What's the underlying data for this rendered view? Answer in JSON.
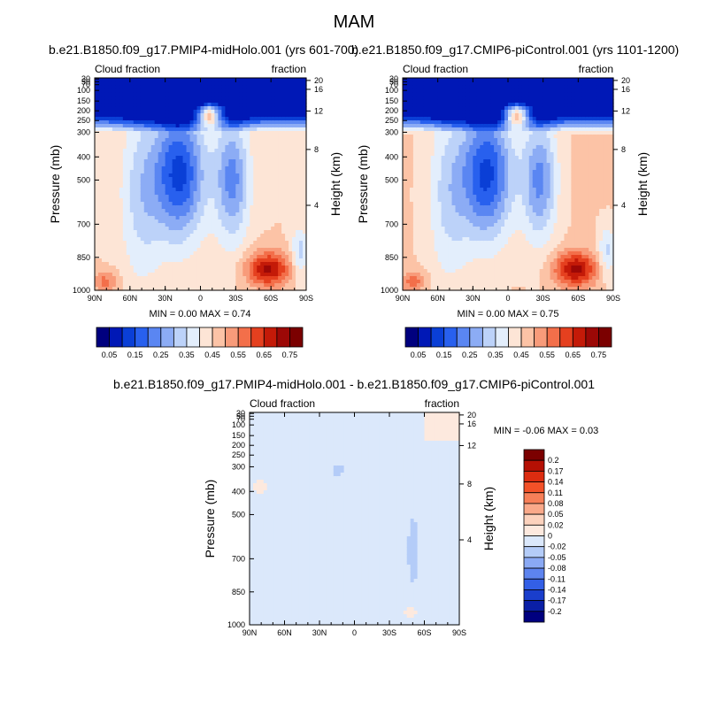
{
  "title": "MAM",
  "panels": [
    {
      "title": "b.e21.B1850.f09_g17.PMIP4-midHolo.001 (yrs 601-700)",
      "left_label": "Cloud fraction",
      "right_label": "fraction",
      "ylabel": "Pressure (mb)",
      "y2label": "Height (km)",
      "stats": "MIN =   0.00  MAX =   0.74"
    },
    {
      "title": "b.e21.B1850.f09_g17.CMIP6-piControl.001 (yrs 1101-1200)",
      "left_label": "Cloud fraction",
      "right_label": "fraction",
      "ylabel": "Pressure (mb)",
      "y2label": "Height (km)",
      "stats": "MIN =   0.00  MAX =   0.75"
    },
    {
      "title": "b.e21.B1850.f09_g17.PMIP4-midHolo.001 - b.e21.B1850.f09_g17.CMIP6-piControl.001",
      "left_label": "Cloud fraction",
      "right_label": "fraction",
      "ylabel": "Pressure (mb)",
      "y2label": "Height (km)",
      "stats": "MIN =  -0.06  MAX =   0.03"
    }
  ],
  "chart_data": [
    {
      "type": "heatmap",
      "title": "b.e21.B1850.f09_g17.PMIP4-midHolo.001 (yrs 601-700)",
      "x": [
        "90N",
        "60N",
        "30N",
        "0",
        "30S",
        "60S",
        "90S"
      ],
      "y": [
        1000,
        850,
        700,
        500,
        400,
        300,
        250,
        200,
        150,
        100,
        70,
        50,
        30
      ],
      "y2": [
        4,
        8,
        12,
        16,
        20
      ],
      "xlabel": "",
      "ylabel": "Pressure (mb)",
      "y2label": "Height (km)",
      "min": 0.0,
      "max": 0.74,
      "colorbar": {
        "labels": [
          "0.05",
          "0.15",
          "0.25",
          "0.35",
          "0.45",
          "0.55",
          "0.65",
          "0.75"
        ],
        "colors": [
          "#00007f",
          "#0018b6",
          "#0a3fd6",
          "#2860ee",
          "#5a86f2",
          "#8cacf5",
          "#bcd2f9",
          "#e3eefc",
          "#fde5d6",
          "#fcc3a6",
          "#f89b7a",
          "#f36f4a",
          "#e5401f",
          "#c41a08",
          "#9c0806",
          "#7b0000"
        ]
      }
    },
    {
      "type": "heatmap",
      "title": "b.e21.B1850.f09_g17.CMIP6-piControl.001 (yrs 1101-1200)",
      "x": [
        "90N",
        "60N",
        "30N",
        "0",
        "30S",
        "60S",
        "90S"
      ],
      "y": [
        1000,
        850,
        700,
        500,
        400,
        300,
        250,
        200,
        150,
        100,
        70,
        50,
        30
      ],
      "y2": [
        4,
        8,
        12,
        16,
        20
      ],
      "xlabel": "",
      "ylabel": "Pressure (mb)",
      "y2label": "Height (km)",
      "min": 0.0,
      "max": 0.75,
      "colorbar": {
        "labels": [
          "0.05",
          "0.15",
          "0.25",
          "0.35",
          "0.45",
          "0.55",
          "0.65",
          "0.75"
        ],
        "colors": [
          "#00007f",
          "#0018b6",
          "#0a3fd6",
          "#2860ee",
          "#5a86f2",
          "#8cacf5",
          "#bcd2f9",
          "#e3eefc",
          "#fde5d6",
          "#fcc3a6",
          "#f89b7a",
          "#f36f4a",
          "#e5401f",
          "#c41a08",
          "#9c0806",
          "#7b0000"
        ]
      }
    },
    {
      "type": "heatmap",
      "title": "b.e21.B1850.f09_g17.PMIP4-midHolo.001 - b.e21.B1850.f09_g17.CMIP6-piControl.001",
      "x": [
        "90N",
        "60N",
        "30N",
        "0",
        "30S",
        "60S",
        "90S"
      ],
      "y": [
        1000,
        850,
        700,
        500,
        400,
        300,
        250,
        200,
        150,
        100,
        70,
        50,
        30
      ],
      "y2": [
        4,
        8,
        12,
        16,
        20
      ],
      "xlabel": "",
      "ylabel": "Pressure (mb)",
      "y2label": "Height (km)",
      "min": -0.06,
      "max": 0.03,
      "colorbar": {
        "labels": [
          "0.2",
          "0.17",
          "0.14",
          "0.11",
          "0.08",
          "0.05",
          "0.02",
          "0",
          "-0.02",
          "-0.05",
          "-0.08",
          "-0.11",
          "-0.14",
          "-0.17",
          "-0.2"
        ],
        "colors": [
          "#7b0000",
          "#b51004",
          "#dc2c10",
          "#f35128",
          "#f77f58",
          "#faa98a",
          "#fcd2bd",
          "#fde9de",
          "#dbe8fb",
          "#b4ccf8",
          "#8aa9f4",
          "#5d84ef",
          "#335fe6",
          "#1a3ecc",
          "#0a1fa6",
          "#00007f"
        ]
      }
    }
  ]
}
